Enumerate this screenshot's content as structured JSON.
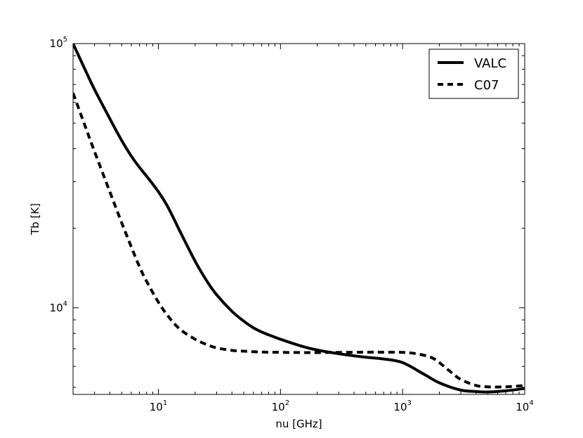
{
  "chart_data": {
    "type": "line",
    "title": "",
    "xlabel": "nu [GHz]",
    "ylabel": "Tb [K]",
    "xscale": "log",
    "yscale": "log",
    "xlim": [
      2,
      10000
    ],
    "ylim": [
      4700,
      100000
    ],
    "x_ticks": [
      {
        "value": 10,
        "base": "10",
        "exp": "1"
      },
      {
        "value": 100,
        "base": "10",
        "exp": "2"
      },
      {
        "value": 1000,
        "base": "10",
        "exp": "3"
      },
      {
        "value": 10000,
        "base": "10",
        "exp": "4"
      }
    ],
    "y_ticks": [
      {
        "value": 10000,
        "base": "10",
        "exp": "4"
      },
      {
        "value": 100000,
        "base": "10",
        "exp": "5"
      }
    ],
    "grid": false,
    "legend_position": "top-right",
    "series": [
      {
        "name": "VALC",
        "style": "solid",
        "color": "#000000",
        "x": [
          2,
          2.5,
          3,
          4,
          5,
          6,
          7,
          8,
          10,
          12,
          15,
          20,
          25,
          30,
          40,
          50,
          60,
          70,
          80,
          100,
          150,
          200,
          300,
          400,
          500,
          700,
          1000,
          1500,
          2000,
          3000,
          4000,
          5000,
          7000,
          10000
        ],
        "y": [
          100000,
          80000,
          67000,
          52000,
          43000,
          37500,
          34000,
          31500,
          27500,
          24000,
          19500,
          15000,
          12600,
          11200,
          9700,
          8900,
          8400,
          8100,
          7900,
          7600,
          7150,
          6920,
          6700,
          6580,
          6500,
          6400,
          6200,
          5600,
          5200,
          4880,
          4820,
          4800,
          4850,
          4950
        ]
      },
      {
        "name": "C07",
        "style": "dashed",
        "color": "#000000",
        "x": [
          2,
          2.5,
          3,
          4,
          5,
          6,
          7,
          8,
          10,
          12,
          15,
          20,
          25,
          30,
          40,
          50,
          70,
          100,
          150,
          200,
          300,
          500,
          700,
          1000,
          1300,
          1700,
          2000,
          2500,
          3000,
          4000,
          5000,
          7000,
          10000
        ],
        "y": [
          65000,
          49000,
          39000,
          27500,
          21000,
          17000,
          14300,
          12600,
          10500,
          9300,
          8300,
          7600,
          7250,
          7050,
          6900,
          6850,
          6800,
          6780,
          6770,
          6770,
          6780,
          6790,
          6790,
          6780,
          6700,
          6500,
          6200,
          5700,
          5350,
          5080,
          5020,
          5020,
          5080
        ]
      }
    ]
  }
}
